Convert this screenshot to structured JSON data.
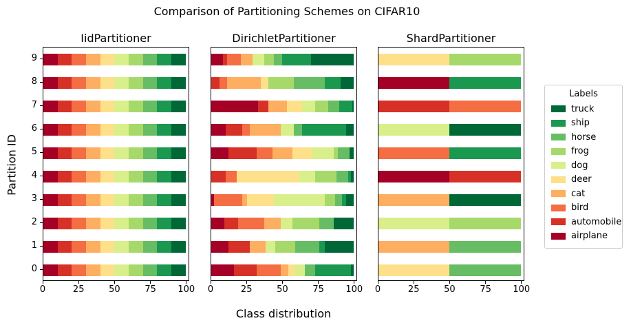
{
  "chart_data": {
    "type": "stacked-barh",
    "title": "Comparison of Partitioning Schemes on CIFAR10",
    "xlabel": "Class distribution",
    "ylabel": "Partition ID",
    "xlim": [
      0,
      102
    ],
    "xticks": [
      0,
      25,
      50,
      75,
      100
    ],
    "partitions": [
      9,
      8,
      7,
      6,
      5,
      4,
      3,
      2,
      1,
      0
    ],
    "classes": [
      "airplane",
      "automobile",
      "bird",
      "cat",
      "deer",
      "dog",
      "frog",
      "horse",
      "ship",
      "truck"
    ],
    "colors": {
      "airplane": "#a50026",
      "automobile": "#d73027",
      "bird": "#f46d43",
      "cat": "#fdae61",
      "deer": "#fee08b",
      "dog": "#d9ef8b",
      "frog": "#a6d96a",
      "horse": "#66bd63",
      "ship": "#1a9850",
      "truck": "#006837"
    },
    "legend": {
      "title": "Labels",
      "entries": [
        "truck",
        "ship",
        "horse",
        "frog",
        "dog",
        "deer",
        "cat",
        "bird",
        "automobile",
        "airplane"
      ]
    },
    "subplots": [
      {
        "title": "IidPartitioner",
        "show_ylabels": true,
        "rows": [
          [
            10,
            10,
            10,
            10,
            10,
            10,
            10,
            10,
            10,
            10
          ],
          [
            10,
            10,
            10,
            10,
            10,
            10,
            10,
            10,
            10,
            10
          ],
          [
            10,
            10,
            10,
            10,
            10,
            10,
            10,
            10,
            10,
            10
          ],
          [
            10,
            10,
            10,
            10,
            10,
            10,
            10,
            10,
            10,
            10
          ],
          [
            10,
            10,
            10,
            10,
            10,
            10,
            10,
            10,
            10,
            10
          ],
          [
            10,
            10,
            10,
            10,
            10,
            10,
            10,
            10,
            10,
            10
          ],
          [
            10,
            10,
            10,
            10,
            10,
            10,
            10,
            10,
            10,
            10
          ],
          [
            10,
            10,
            10,
            10,
            10,
            10,
            10,
            10,
            10,
            10
          ],
          [
            10,
            10,
            10,
            10,
            10,
            10,
            10,
            10,
            10,
            10
          ],
          [
            10,
            10,
            10,
            10,
            10,
            10,
            10,
            10,
            10,
            10
          ]
        ]
      },
      {
        "title": "DirichletPartitioner",
        "show_ylabels": false,
        "rows": [
          [
            8,
            3,
            10,
            8,
            0,
            8,
            7,
            6,
            20,
            30
          ],
          [
            0,
            6,
            5,
            24,
            5,
            0,
            18,
            22,
            11,
            9
          ],
          [
            33,
            7,
            0,
            13,
            11,
            9,
            9,
            8,
            9,
            1
          ],
          [
            10,
            12,
            5,
            22,
            0,
            9,
            0,
            6,
            31,
            5
          ],
          [
            12,
            20,
            11,
            14,
            14,
            15,
            3,
            8,
            0,
            3
          ],
          [
            0,
            10,
            8,
            0,
            44,
            11,
            15,
            8,
            2,
            2
          ],
          [
            2,
            0,
            20,
            3,
            19,
            36,
            7,
            5,
            3,
            5
          ],
          [
            9,
            10,
            18,
            12,
            0,
            8,
            19,
            10,
            0,
            14
          ],
          [
            12,
            15,
            0,
            11,
            0,
            7,
            14,
            17,
            4,
            20
          ],
          [
            16,
            16,
            17,
            5,
            5,
            7,
            0,
            7,
            25,
            2
          ]
        ]
      },
      {
        "title": "ShardPartitioner",
        "show_ylabels": false,
        "rows": [
          [
            0,
            0,
            0,
            0,
            50,
            0,
            50,
            0,
            0,
            0
          ],
          [
            50,
            0,
            0,
            0,
            0,
            0,
            0,
            0,
            50,
            0
          ],
          [
            0,
            50,
            50,
            0,
            0,
            0,
            0,
            0,
            0,
            0
          ],
          [
            0,
            0,
            0,
            0,
            0,
            50,
            0,
            0,
            0,
            50
          ],
          [
            0,
            0,
            50,
            0,
            0,
            0,
            0,
            0,
            50,
            0
          ],
          [
            50,
            50,
            0,
            0,
            0,
            0,
            0,
            0,
            0,
            0
          ],
          [
            0,
            0,
            0,
            50,
            0,
            0,
            0,
            0,
            0,
            50
          ],
          [
            0,
            0,
            0,
            0,
            0,
            50,
            50,
            0,
            0,
            0
          ],
          [
            0,
            0,
            0,
            50,
            0,
            0,
            0,
            50,
            0,
            0
          ],
          [
            0,
            0,
            0,
            0,
            50,
            0,
            0,
            50,
            0,
            0
          ]
        ]
      }
    ]
  }
}
